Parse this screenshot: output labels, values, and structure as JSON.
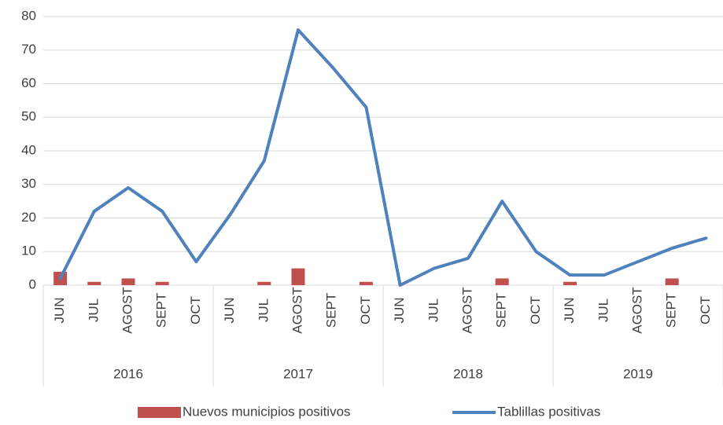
{
  "chart_data": {
    "type": "bar_line",
    "categories": [
      "JUN",
      "JUL",
      "AGOST",
      "SEPT",
      "OCT",
      "JUN",
      "JUL",
      "AGOST",
      "SEPT",
      "OCT",
      "JUN",
      "JUL",
      "AGOST",
      "SEPT",
      "OCT",
      "JUN",
      "JUL",
      "AGOST",
      "SEPT",
      "OCT"
    ],
    "groups": [
      "2016",
      "2017",
      "2018",
      "2019"
    ],
    "series": [
      {
        "name": "Nuevos municipios positivos",
        "type": "bar",
        "color": "#c0504d",
        "values": [
          4,
          1,
          2,
          1,
          0,
          0,
          1,
          5,
          0,
          1,
          0,
          0,
          0,
          2,
          0,
          1,
          0,
          0,
          2,
          0
        ]
      },
      {
        "name": "Tablillas positivas",
        "type": "line",
        "color": "#4f81bd",
        "values": [
          2,
          22,
          29,
          22,
          7,
          21,
          37,
          76,
          65,
          53,
          0,
          5,
          8,
          25,
          10,
          3,
          3,
          7,
          11,
          14
        ]
      }
    ],
    "ylim": [
      0,
      80
    ],
    "yticks": [
      0,
      10,
      20,
      30,
      40,
      50,
      60,
      70,
      80
    ],
    "grid": true,
    "legend": "bottom"
  }
}
